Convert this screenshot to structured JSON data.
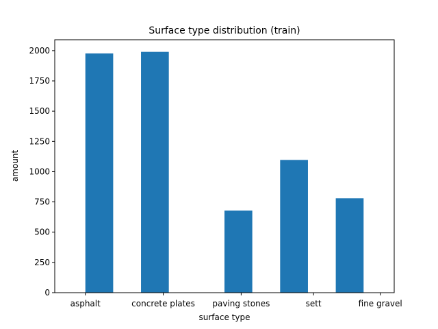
{
  "chart_data": {
    "type": "bar",
    "title": "Surface type distribution (train)",
    "xlabel": "surface type",
    "ylabel": "amount",
    "ylim": [
      0,
      2090
    ],
    "yticks": [
      0,
      250,
      500,
      750,
      1000,
      1250,
      1500,
      1750,
      2000
    ],
    "xticks": [
      "asphalt",
      "concrete plates",
      "paving stones",
      "sett",
      "fine gravel"
    ],
    "xlim": [
      -0.55,
      5.55
    ],
    "bars": [
      {
        "x": 0.25,
        "value": 1977
      },
      {
        "x": 1.25,
        "value": 1990
      },
      {
        "x": 2.75,
        "value": 678
      },
      {
        "x": 3.75,
        "value": 1097
      },
      {
        "x": 4.75,
        "value": 780
      }
    ],
    "bar_width": 0.5,
    "tick_positions": [
      0,
      1.4,
      2.8,
      4.1,
      5.3
    ],
    "bar_color": "#1f77b4",
    "grid": false
  }
}
